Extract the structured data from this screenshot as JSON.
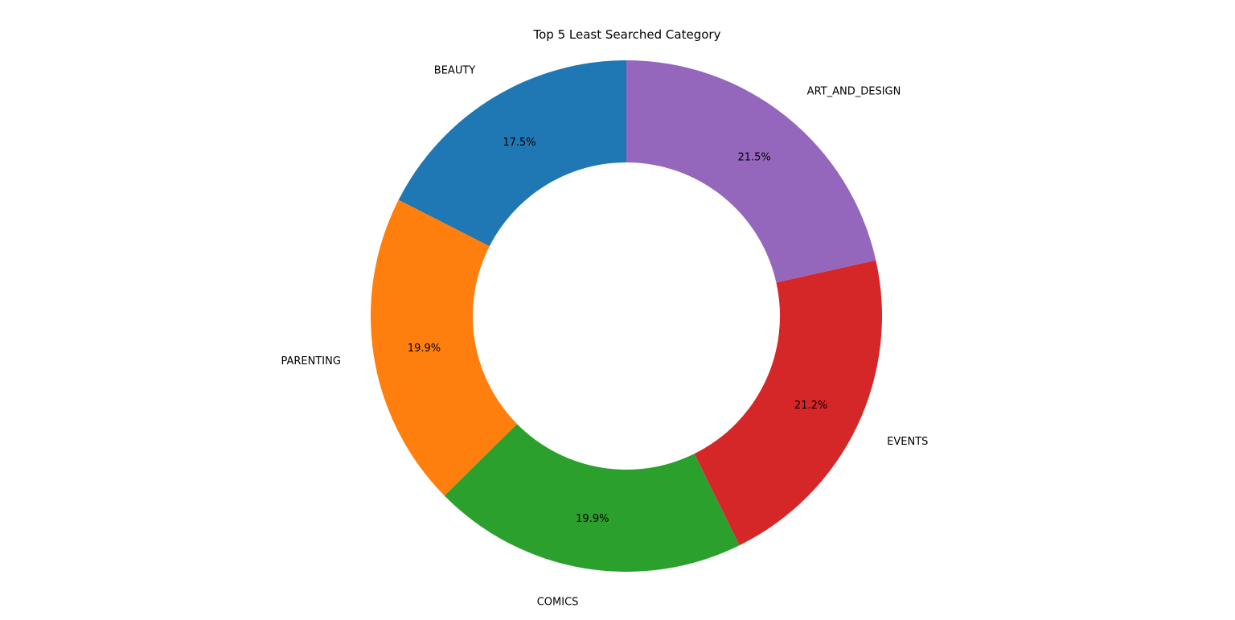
{
  "chart_data": {
    "type": "pie",
    "title": "Top 5 Least Searched Category",
    "donut": true,
    "start_angle_deg": 90,
    "direction": "counterclockwise",
    "slices": [
      {
        "label": "BEAUTY",
        "percent_label": "17.5%",
        "value": 17.5,
        "color": "#1f77b4"
      },
      {
        "label": "PARENTING",
        "percent_label": "19.9%",
        "value": 19.9,
        "color": "#ff7f0e"
      },
      {
        "label": "COMICS",
        "percent_label": "19.9%",
        "value": 19.9,
        "color": "#2ca02c"
      },
      {
        "label": "EVENTS",
        "percent_label": "21.2%",
        "value": 21.2,
        "color": "#d62728"
      },
      {
        "label": "ART_AND_DESIGN",
        "percent_label": "21.5%",
        "value": 21.5,
        "color": "#9467bd"
      }
    ]
  }
}
